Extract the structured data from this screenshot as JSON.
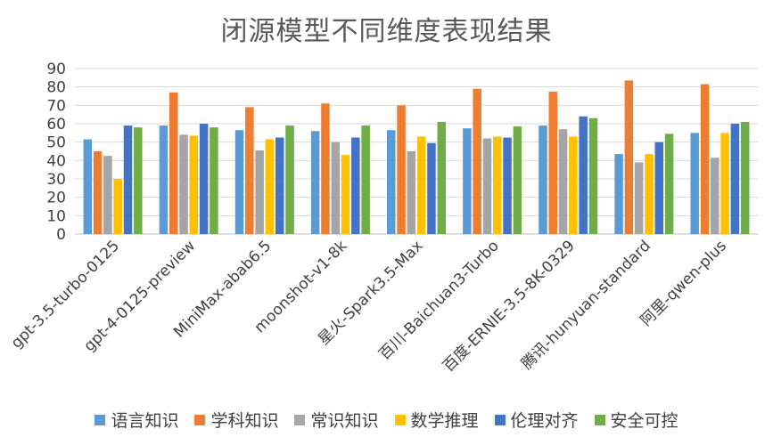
{
  "chart_data": {
    "type": "bar",
    "title": "闭源模型不同维度表现结果",
    "categories": [
      "gpt-3.5-turbo-0125",
      "gpt-4-0125-preview",
      "MiniMax-abab6.5",
      "moonshot-v1-8k",
      "星火-Spark3.5-Max",
      "百川-Baichuan3-Turbo",
      "百度-ERNIE-3.5-8K-0329",
      "腾讯-hunyuan-standard",
      "阿里-qwen-plus"
    ],
    "series": [
      {
        "name": "语言知识",
        "color": "#5B9BD5",
        "values": [
          51.5,
          59,
          56.5,
          56,
          56.5,
          57.5,
          59,
          43.5,
          55
        ]
      },
      {
        "name": "学科知识",
        "color": "#ED7D31",
        "values": [
          45,
          77,
          69,
          71,
          70,
          79,
          77.5,
          83.5,
          81.5
        ]
      },
      {
        "name": "常识知识",
        "color": "#A5A5A5",
        "values": [
          42.5,
          54,
          45.5,
          50,
          45,
          52,
          57,
          39,
          41.5
        ]
      },
      {
        "name": "数学推理",
        "color": "#FFC000",
        "values": [
          30,
          53.5,
          51.5,
          43,
          53,
          53,
          53,
          43.5,
          55
        ]
      },
      {
        "name": "伦理对齐",
        "color": "#4472C4",
        "values": [
          59,
          60,
          52.5,
          52.5,
          49.5,
          52.5,
          64,
          50,
          60
        ]
      },
      {
        "name": "安全可控",
        "color": "#70AD47",
        "values": [
          58,
          58,
          59,
          59,
          61,
          58.5,
          63,
          54.5,
          61
        ]
      }
    ],
    "ylim": [
      0,
      90
    ],
    "yticks": [
      0,
      10,
      20,
      30,
      40,
      50,
      60,
      70,
      80,
      90
    ],
    "grid": true,
    "legend_position": "bottom"
  }
}
